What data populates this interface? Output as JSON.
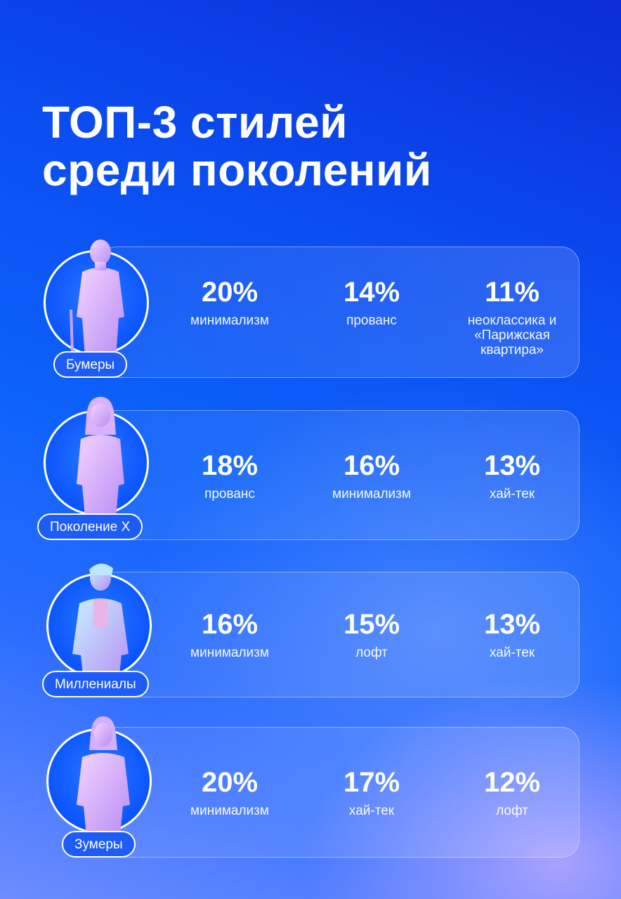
{
  "title": {
    "line1": "ТОП-3 стилей",
    "line2": "среди поколений"
  },
  "generations": [
    {
      "name": "Бумеры",
      "stats": [
        {
          "value": "20%",
          "style": "минимализм"
        },
        {
          "value": "14%",
          "style": "прованс"
        },
        {
          "value": "11%",
          "style": "неоклассика и «Парижская квартира»"
        }
      ]
    },
    {
      "name": "Поколение X",
      "stats": [
        {
          "value": "18%",
          "style": "прованс"
        },
        {
          "value": "16%",
          "style": "минимализм"
        },
        {
          "value": "13%",
          "style": "хай-тек"
        }
      ]
    },
    {
      "name": "Миллениалы",
      "stats": [
        {
          "value": "16%",
          "style": "минимализм"
        },
        {
          "value": "15%",
          "style": "лофт"
        },
        {
          "value": "13%",
          "style": "хай-тек"
        }
      ]
    },
    {
      "name": "Зумеры",
      "stats": [
        {
          "value": "20%",
          "style": "минимализм"
        },
        {
          "value": "17%",
          "style": "хай-тек"
        },
        {
          "value": "12%",
          "style": "лофт"
        }
      ]
    }
  ],
  "colors": {
    "background": "#0d62fb",
    "text": "#ffffff",
    "avatar_fill": "#0a55ff",
    "figure": "#e2b6ff"
  }
}
